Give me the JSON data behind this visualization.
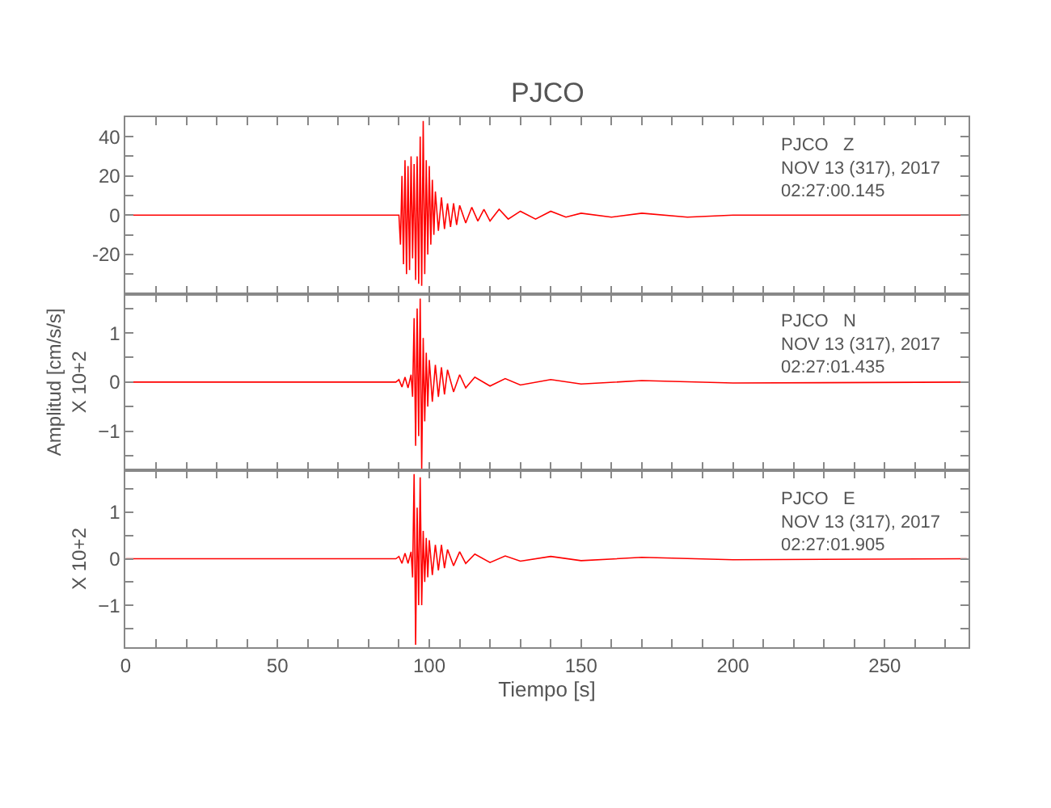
{
  "chart_data": [
    {
      "type": "line",
      "title": "PJCO",
      "tick_labels": "y",
      "x": [
        0,
        88,
        90,
        90.5,
        91,
        91.5,
        92,
        92.5,
        93,
        93.5,
        94,
        94.5,
        95,
        95.5,
        96,
        96.5,
        97,
        97.5,
        98,
        98.5,
        99,
        99.5,
        100,
        100.5,
        101,
        101.5,
        102,
        103,
        104,
        105,
        106,
        107,
        108,
        109,
        110,
        112,
        114,
        116,
        118,
        120,
        123,
        126,
        130,
        135,
        140,
        145,
        150,
        160,
        170,
        185,
        200,
        230,
        277
      ],
      "series": [
        {
          "color": "#ff0000",
          "values": [
            0,
            0,
            0,
            -15,
            20,
            -25,
            28,
            -30,
            25,
            -28,
            30,
            -22,
            26,
            -33,
            30,
            -35,
            40,
            -36,
            48,
            -30,
            28,
            -20,
            25,
            -15,
            18,
            -10,
            12,
            -8,
            9,
            -7,
            6,
            -6,
            6,
            -5,
            5,
            -4,
            4,
            -3,
            3,
            -3,
            3,
            -2,
            2,
            -2,
            2,
            -1,
            1,
            -1,
            1,
            -1,
            0,
            0,
            0
          ]
        }
      ],
      "xlim": [
        0,
        277.5
      ],
      "xticks": [
        0,
        {
          "value": 10,
          "label": null
        },
        {
          "value": 20,
          "label": null
        },
        {
          "value": 30,
          "label": null
        },
        {
          "value": 40,
          "label": null
        },
        50,
        {
          "value": 60,
          "label": null
        },
        {
          "value": 70,
          "label": null
        },
        {
          "value": 80,
          "label": null
        },
        {
          "value": 90,
          "label": null
        },
        100,
        {
          "value": 110,
          "label": null
        },
        {
          "value": 120,
          "label": null
        },
        {
          "value": 130,
          "label": null
        },
        {
          "value": 140,
          "label": null
        },
        150,
        {
          "value": 160,
          "label": null
        },
        {
          "value": 170,
          "label": null
        },
        {
          "value": 180,
          "label": null
        },
        {
          "value": 190,
          "label": null
        },
        200,
        {
          "value": 210,
          "label": null
        },
        {
          "value": 220,
          "label": null
        },
        {
          "value": 230,
          "label": null
        },
        {
          "value": 240,
          "label": null
        },
        250,
        {
          "value": 260,
          "label": null
        },
        {
          "value": 270,
          "label": null
        }
      ],
      "ylim": [
        -40,
        50
      ],
      "yticks": [
        {
          "value": -30,
          "label": null
        },
        -20,
        {
          "value": -10,
          "label": null
        },
        0,
        {
          "value": 10,
          "label": null
        },
        20,
        {
          "value": 30,
          "label": null
        },
        40
      ],
      "annotations": [
        "PJCO   Z\nNOV 13 (317), 2017\n02:27:00.145"
      ]
    },
    {
      "type": "line",
      "tick_labels": "y",
      "ylabel": "Amplitud [cm/s/s]\nX 10+2",
      "x": [
        0,
        89,
        90,
        91,
        92,
        93,
        94,
        94.5,
        95,
        95.5,
        96,
        96.5,
        97,
        97.5,
        98,
        98.5,
        99,
        99.5,
        100,
        101,
        102,
        103,
        104,
        105,
        106,
        108,
        110,
        112,
        115,
        120,
        125,
        130,
        140,
        150,
        170,
        200,
        277
      ],
      "series": [
        {
          "color": "#ff0000",
          "values": [
            0,
            0,
            0.05,
            -0.1,
            0.1,
            -0.12,
            0.15,
            -0.3,
            1.3,
            -1.3,
            1.5,
            -1.1,
            1.7,
            -1.78,
            0.9,
            -0.8,
            0.6,
            -0.5,
            0.45,
            -0.4,
            0.35,
            -0.3,
            0.3,
            -0.25,
            0.25,
            -0.2,
            0.15,
            -0.12,
            0.1,
            -0.08,
            0.07,
            -0.06,
            0.05,
            -0.04,
            0.03,
            -0.02,
            0
          ]
        }
      ],
      "xlim": [
        0,
        277.5
      ],
      "xticks": [
        0,
        {
          "value": 10,
          "label": null
        },
        {
          "value": 20,
          "label": null
        },
        {
          "value": 30,
          "label": null
        },
        {
          "value": 40,
          "label": null
        },
        50,
        {
          "value": 60,
          "label": null
        },
        {
          "value": 70,
          "label": null
        },
        {
          "value": 80,
          "label": null
        },
        {
          "value": 90,
          "label": null
        },
        100,
        {
          "value": 110,
          "label": null
        },
        {
          "value": 120,
          "label": null
        },
        {
          "value": 130,
          "label": null
        },
        {
          "value": 140,
          "label": null
        },
        150,
        {
          "value": 160,
          "label": null
        },
        {
          "value": 170,
          "label": null
        },
        {
          "value": 180,
          "label": null
        },
        {
          "value": 190,
          "label": null
        },
        200,
        {
          "value": 210,
          "label": null
        },
        {
          "value": 220,
          "label": null
        },
        {
          "value": 230,
          "label": null
        },
        {
          "value": 240,
          "label": null
        },
        250,
        {
          "value": 260,
          "label": null
        },
        {
          "value": 270,
          "label": null
        }
      ],
      "ylim": [
        -1.8,
        1.8
      ],
      "yticks": [
        {
          "value": -1.5,
          "label": null
        },
        {
          "value": -1,
          "label": "−1"
        },
        {
          "value": -0.5,
          "label": null
        },
        0,
        {
          "value": 0.5,
          "label": null
        },
        1,
        {
          "value": 1.5,
          "label": null
        }
      ],
      "annotations": [
        "PJCO   N\nNOV 13 (317), 2017\n02:27:01.435"
      ]
    },
    {
      "type": "line",
      "ylabel": "X 10+2",
      "xlabel": "Tiempo [s]",
      "x": [
        0,
        89,
        90,
        91,
        92,
        93,
        94,
        94.5,
        95,
        95.5,
        96,
        96.5,
        97,
        97.5,
        98,
        98.5,
        99,
        99.5,
        100,
        101,
        102,
        103,
        104,
        105,
        106,
        108,
        110,
        112,
        115,
        120,
        125,
        130,
        140,
        150,
        170,
        200,
        277
      ],
      "series": [
        {
          "color": "#ff0000",
          "values": [
            0,
            0,
            0.05,
            -0.1,
            0.12,
            -0.1,
            0.15,
            -0.4,
            1.82,
            -1.85,
            1.1,
            -1.0,
            1.75,
            -1.0,
            0.6,
            -0.5,
            0.45,
            -0.4,
            0.4,
            -0.35,
            0.3,
            -0.25,
            0.3,
            -0.2,
            0.2,
            -0.15,
            0.15,
            -0.1,
            0.1,
            -0.08,
            0.06,
            -0.05,
            0.05,
            -0.04,
            0.03,
            -0.02,
            0
          ]
        }
      ],
      "xlim": [
        0,
        277.5
      ],
      "xticks": [
        0,
        {
          "value": 10,
          "label": null
        },
        {
          "value": 20,
          "label": null
        },
        {
          "value": 30,
          "label": null
        },
        {
          "value": 40,
          "label": null
        },
        50,
        {
          "value": 60,
          "label": null
        },
        {
          "value": 70,
          "label": null
        },
        {
          "value": 80,
          "label": null
        },
        {
          "value": 90,
          "label": null
        },
        100,
        {
          "value": 110,
          "label": null
        },
        {
          "value": 120,
          "label": null
        },
        {
          "value": 130,
          "label": null
        },
        {
          "value": 140,
          "label": null
        },
        150,
        {
          "value": 160,
          "label": null
        },
        {
          "value": 170,
          "label": null
        },
        {
          "value": 180,
          "label": null
        },
        {
          "value": 190,
          "label": null
        },
        200,
        {
          "value": 210,
          "label": null
        },
        {
          "value": 220,
          "label": null
        },
        {
          "value": 230,
          "label": null
        },
        {
          "value": 240,
          "label": null
        },
        250,
        {
          "value": 260,
          "label": null
        },
        {
          "value": 270,
          "label": null
        }
      ],
      "ylim": [
        -1.9,
        1.9
      ],
      "yticks": [
        {
          "value": -1.5,
          "label": null
        },
        {
          "value": -1,
          "label": "−1"
        },
        {
          "value": -0.5,
          "label": null
        },
        0,
        {
          "value": 0.5,
          "label": null
        },
        1,
        {
          "value": 1.5,
          "label": null
        }
      ],
      "annotations": [
        "PJCO   E\nNOV 13 (317), 2017\n02:27:01.905"
      ]
    }
  ]
}
